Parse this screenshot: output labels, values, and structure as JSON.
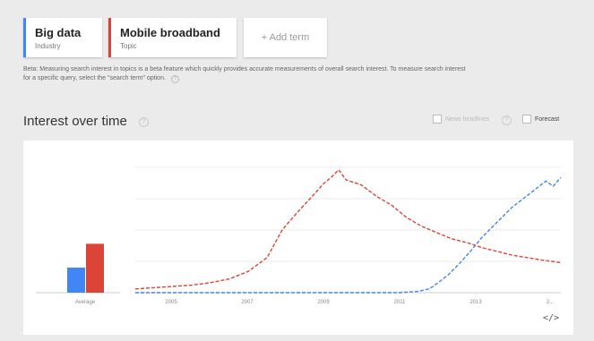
{
  "terms": [
    {
      "name": "Big data",
      "type": "Industry",
      "color": "#4285f4"
    },
    {
      "name": "Mobile broadband",
      "type": "Topic",
      "color": "#db4437"
    }
  ],
  "add_term_label": "+ Add term",
  "beta_note": "Beta: Measuring search interest in topics is a beta feature which quickly provides accurate measurements of overall search interest. To measure search interest for a specific query, select the \"search term\" option.",
  "section_title": "Interest over time",
  "help_glyph": "?",
  "news_headlines_label": "News headlines",
  "forecast_label": "Forecast",
  "embed_glyph": "</>",
  "chart_data": {
    "type": "line",
    "x_tick_labels": [
      "2005",
      "2007",
      "2009",
      "2011",
      "2013",
      "2..."
    ],
    "x_range": [
      2004,
      2015.3
    ],
    "y_range": [
      0,
      100
    ],
    "grid": true,
    "average_bars": {
      "label": "Average",
      "values": [
        {
          "series": "Big data",
          "value": 20,
          "color": "#4285f4"
        },
        {
          "series": "Mobile broadband",
          "value": 39,
          "color": "#db4437"
        }
      ]
    },
    "series": [
      {
        "name": "Big data",
        "color": "#4285f4",
        "dash": "dashed",
        "points": [
          [
            2004.0,
            0
          ],
          [
            2005.0,
            0
          ],
          [
            2006.0,
            0
          ],
          [
            2007.0,
            0
          ],
          [
            2008.0,
            0
          ],
          [
            2009.0,
            0
          ],
          [
            2010.0,
            0
          ],
          [
            2011.0,
            0
          ],
          [
            2011.5,
            1
          ],
          [
            2011.8,
            3
          ],
          [
            2012.0,
            7
          ],
          [
            2012.3,
            14
          ],
          [
            2012.6,
            23
          ],
          [
            2012.9,
            33
          ],
          [
            2013.2,
            44
          ],
          [
            2013.5,
            53
          ],
          [
            2013.8,
            62
          ],
          [
            2014.0,
            68
          ],
          [
            2014.3,
            75
          ],
          [
            2014.6,
            82
          ],
          [
            2014.9,
            89
          ],
          [
            2015.1,
            85
          ],
          [
            2015.3,
            92
          ]
        ]
      },
      {
        "name": "Mobile broadband",
        "color": "#db4437",
        "dash": "dashed",
        "points": [
          [
            2004.0,
            3
          ],
          [
            2004.5,
            4
          ],
          [
            2005.0,
            5
          ],
          [
            2005.5,
            6
          ],
          [
            2006.0,
            8
          ],
          [
            2006.5,
            11
          ],
          [
            2007.0,
            17
          ],
          [
            2007.5,
            28
          ],
          [
            2007.9,
            50
          ],
          [
            2008.3,
            64
          ],
          [
            2008.7,
            77
          ],
          [
            2009.0,
            87
          ],
          [
            2009.2,
            92
          ],
          [
            2009.4,
            98
          ],
          [
            2009.6,
            90
          ],
          [
            2010.0,
            86
          ],
          [
            2010.4,
            77
          ],
          [
            2010.8,
            70
          ],
          [
            2011.2,
            60
          ],
          [
            2011.6,
            53
          ],
          [
            2012.0,
            48
          ],
          [
            2012.4,
            43
          ],
          [
            2012.8,
            40
          ],
          [
            2013.2,
            36
          ],
          [
            2013.6,
            33
          ],
          [
            2014.0,
            30
          ],
          [
            2014.4,
            28
          ],
          [
            2014.8,
            26
          ],
          [
            2015.3,
            24
          ]
        ]
      }
    ]
  }
}
